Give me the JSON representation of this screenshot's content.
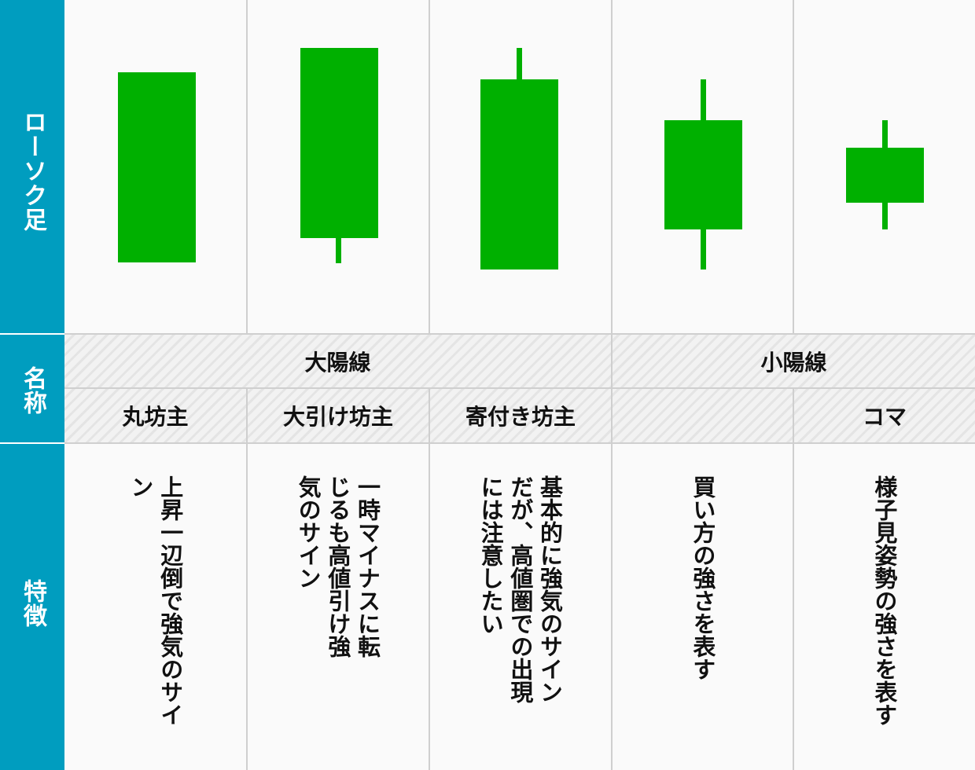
{
  "row_labels": {
    "candle": "ローソク足",
    "name": "名称",
    "feature": "特徴"
  },
  "groups": [
    {
      "label": "大陽線"
    },
    {
      "label": "小陽線"
    }
  ],
  "columns": [
    {
      "name": "丸坊主",
      "feature": "上昇一辺倒で強気のサイン"
    },
    {
      "name": "大引け坊主",
      "feature": "一時マイナスに転じるも高値引け強気のサイン"
    },
    {
      "name": "寄付き坊主",
      "feature": "基本的に強気のサインだが、高値圏での出現には注意したい"
    },
    {
      "name": "",
      "feature": "買い方の強さを表す"
    },
    {
      "name": "コマ",
      "feature": "様子見姿勢の強さを表す"
    }
  ],
  "colors": {
    "sidebar": "#009dbf",
    "candle": "#00b000",
    "grid": "#cfcfcf"
  }
}
